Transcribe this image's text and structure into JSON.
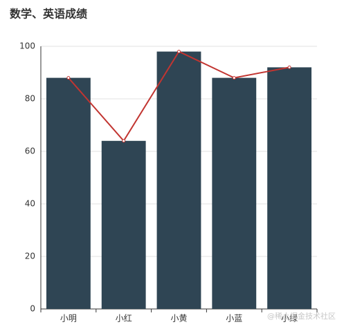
{
  "chart_data": {
    "type": "bar",
    "title": "数学、英语成绩",
    "categories": [
      "小明",
      "小红",
      "小黄",
      "小蓝",
      "小绿"
    ],
    "series": [
      {
        "type": "bar",
        "color": "#2f4554",
        "values": [
          88,
          64,
          98,
          88,
          92
        ]
      },
      {
        "type": "line",
        "color": "#c23531",
        "values": [
          88,
          64,
          98,
          88,
          92
        ]
      }
    ],
    "ylim": [
      0,
      100
    ],
    "yticks": [
      0,
      20,
      40,
      60,
      80,
      100
    ],
    "grid": true,
    "watermark": "@稀土掘金技术社区"
  }
}
